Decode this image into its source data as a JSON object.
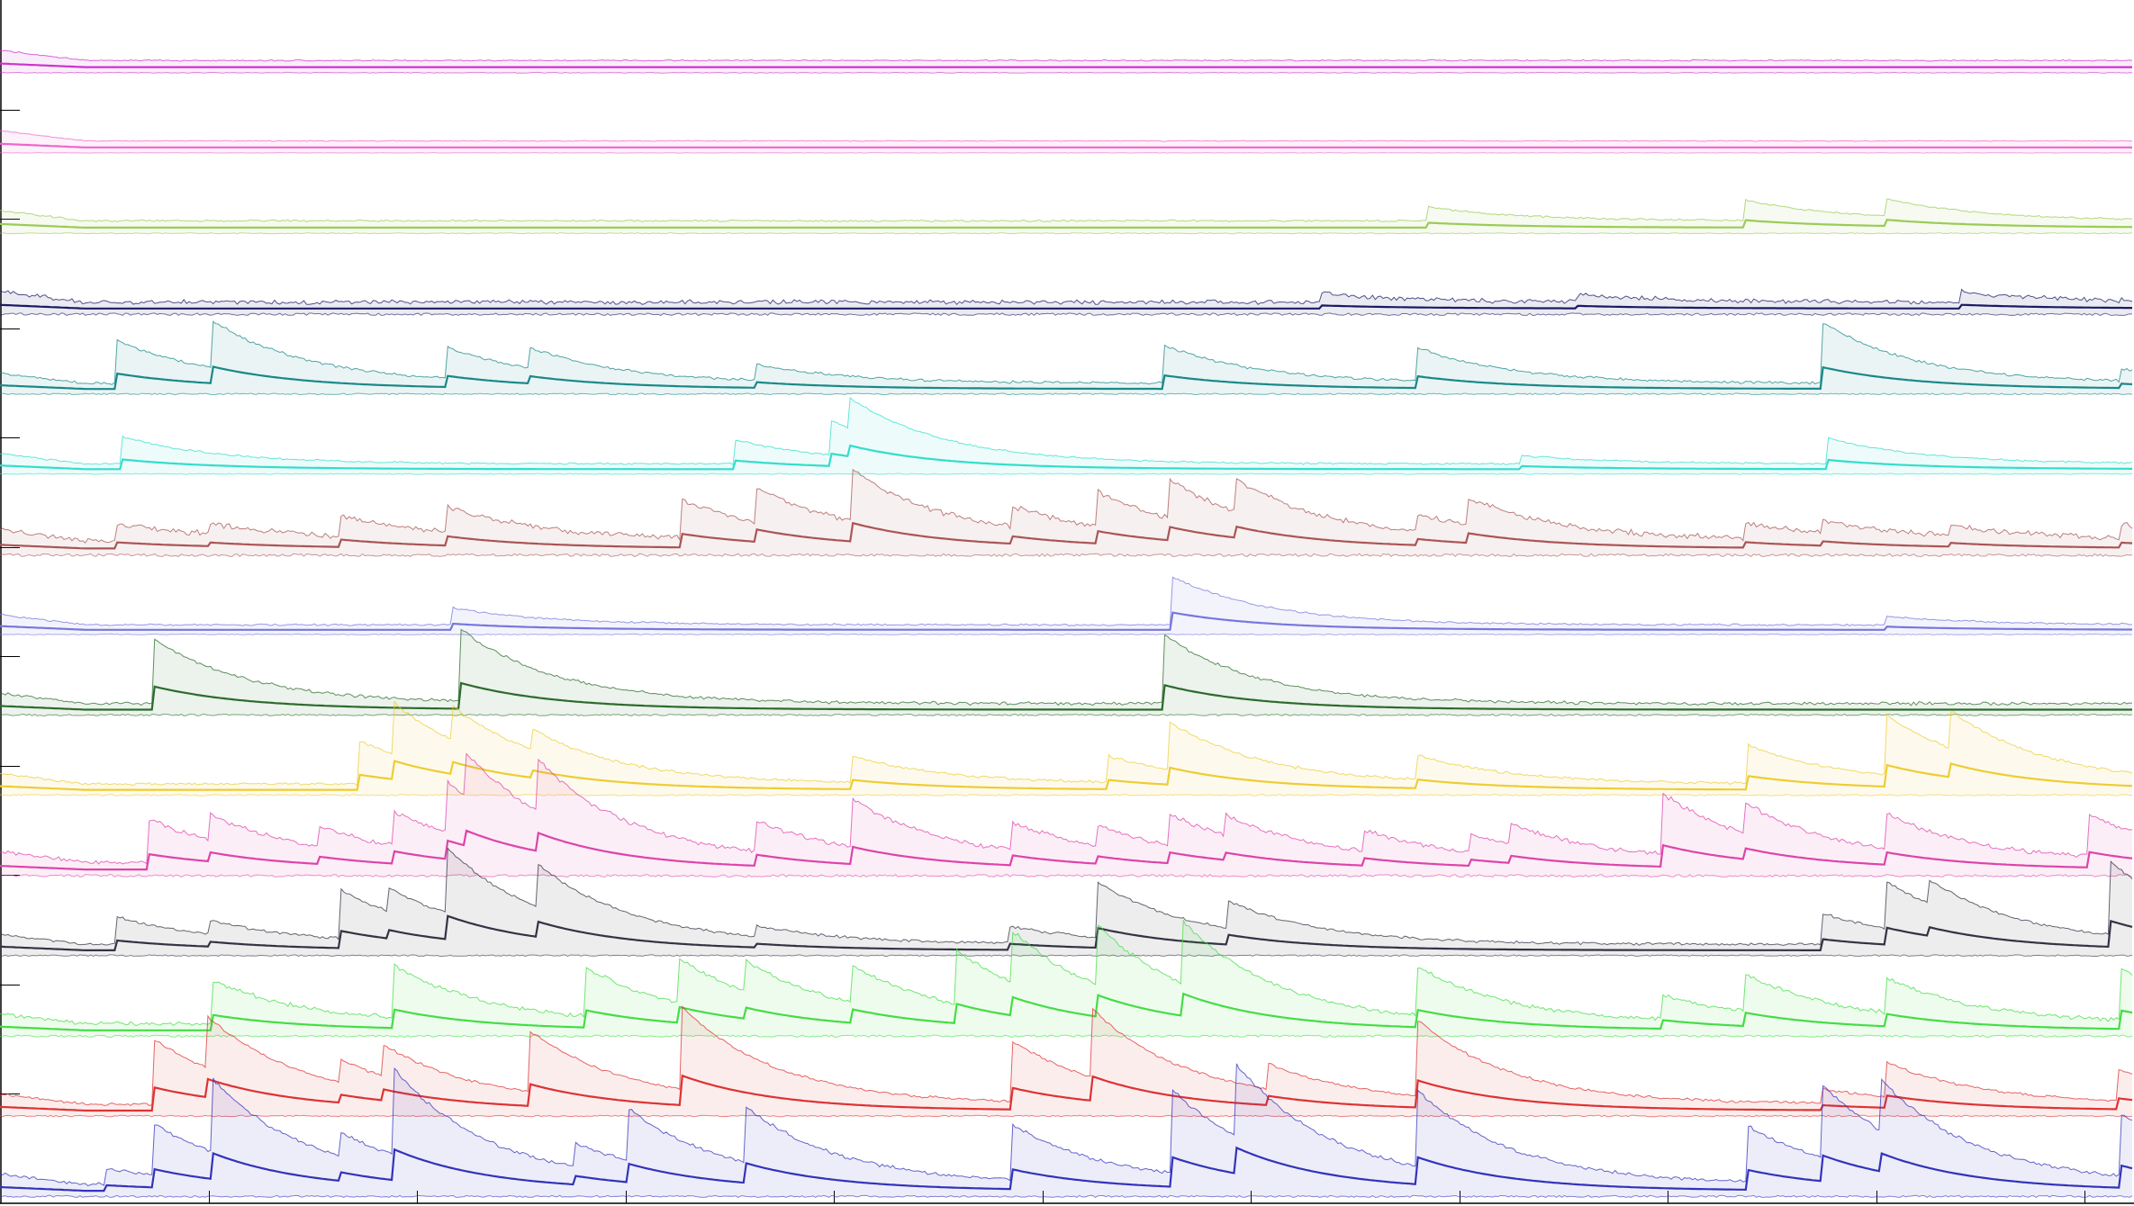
{
  "chart_data": {
    "type": "area",
    "title": "",
    "xlabel": "",
    "ylabel": "",
    "grid": false,
    "legend": "none",
    "x_ticks_count": 10,
    "y_ticks_count": 10,
    "x_range": [
      0,
      1000
    ],
    "series": [
      {
        "color": "#cc33cc",
        "baseline": 0.98,
        "noise": 0.15,
        "bursts": []
      },
      {
        "color": "#ee66cc",
        "baseline": 0.96,
        "noise": 0.1,
        "bursts": []
      },
      {
        "color": "#99cc55",
        "baseline": 0.97,
        "noise": 0.2,
        "bursts": [
          [
            670,
            0.8
          ],
          [
            818,
            1.2
          ],
          [
            885,
            1.0
          ]
        ]
      },
      {
        "color": "#1a1a66",
        "baseline": 0.6,
        "noise": 0.5,
        "bursts": [
          [
            620,
            0.5
          ],
          [
            740,
            0.4
          ],
          [
            920,
            0.6
          ]
        ]
      },
      {
        "color": "#1a8888",
        "baseline": 0.5,
        "noise": 0.3,
        "bursts": [
          [
            55,
            2.5
          ],
          [
            100,
            2.7
          ],
          [
            210,
            1.8
          ],
          [
            248,
            1.2
          ],
          [
            355,
            0.9
          ],
          [
            546,
            2.2
          ],
          [
            665,
            1.9
          ],
          [
            855,
            3.5
          ],
          [
            995,
            0.7
          ]
        ]
      },
      {
        "color": "#33ddcc",
        "baseline": 0.5,
        "noise": 0.2,
        "bursts": [
          [
            57,
            1.6
          ],
          [
            345,
            1.4
          ],
          [
            390,
            2.0
          ],
          [
            398,
            1.8
          ],
          [
            713,
            0.5
          ],
          [
            857,
            1.5
          ]
        ]
      },
      {
        "color": "#aa5555",
        "baseline": 1.0,
        "noise": 0.6,
        "bursts": [
          [
            55,
            1.0
          ],
          [
            98,
            0.6
          ],
          [
            160,
            1.2
          ],
          [
            210,
            1.5
          ],
          [
            320,
            2.2
          ],
          [
            355,
            2.0
          ],
          [
            400,
            3.0
          ],
          [
            475,
            1.2
          ],
          [
            515,
            2.0
          ],
          [
            548,
            2.2
          ],
          [
            580,
            1.8
          ],
          [
            665,
            1.0
          ],
          [
            688,
            1.6
          ],
          [
            818,
            0.9
          ],
          [
            855,
            0.7
          ],
          [
            915,
            0.6
          ],
          [
            995,
            0.8
          ]
        ]
      },
      {
        "color": "#7777dd",
        "baseline": 0.4,
        "noise": 0.2,
        "bursts": [
          [
            212,
            1.0
          ],
          [
            550,
            2.8
          ],
          [
            885,
            0.5
          ]
        ]
      },
      {
        "color": "#2d6b2d",
        "baseline": 0.6,
        "noise": 0.35,
        "bursts": [
          [
            72,
            3.8
          ],
          [
            216,
            4.2
          ],
          [
            546,
            4.0
          ]
        ]
      },
      {
        "color": "#eecc33",
        "baseline": 0.6,
        "noise": 0.3,
        "bursts": [
          [
            168,
            2.5
          ],
          [
            185,
            3.0
          ],
          [
            212,
            2.0
          ],
          [
            250,
            1.2
          ],
          [
            400,
            1.5
          ],
          [
            520,
            1.5
          ],
          [
            548,
            2.8
          ],
          [
            665,
            1.4
          ],
          [
            820,
            2.2
          ],
          [
            885,
            3.5
          ],
          [
            915,
            2.2
          ]
        ]
      },
      {
        "color": "#dd44aa",
        "baseline": 0.9,
        "noise": 0.5,
        "bursts": [
          [
            70,
            2.5
          ],
          [
            98,
            1.5
          ],
          [
            150,
            1.2
          ],
          [
            185,
            2.0
          ],
          [
            210,
            3.0
          ],
          [
            218,
            2.5
          ],
          [
            252,
            3.0
          ],
          [
            355,
            1.8
          ],
          [
            400,
            2.8
          ],
          [
            475,
            1.6
          ],
          [
            515,
            1.2
          ],
          [
            548,
            1.8
          ],
          [
            575,
            1.2
          ],
          [
            640,
            1.2
          ],
          [
            690,
            1.0
          ],
          [
            708,
            1.2
          ],
          [
            780,
            3.5
          ],
          [
            818,
            1.8
          ],
          [
            885,
            2.0
          ],
          [
            980,
            2.5
          ]
        ]
      },
      {
        "color": "#333344",
        "baseline": 0.6,
        "noise": 0.3,
        "bursts": [
          [
            55,
            1.6
          ],
          [
            98,
            0.8
          ],
          [
            160,
            2.8
          ],
          [
            182,
            1.4
          ],
          [
            210,
            3.8
          ],
          [
            252,
            2.5
          ],
          [
            355,
            0.6
          ],
          [
            473,
            1.0
          ],
          [
            515,
            3.2
          ],
          [
            576,
            1.6
          ],
          [
            855,
            1.8
          ],
          [
            884,
            2.8
          ],
          [
            905,
            1.4
          ],
          [
            990,
            4.2
          ]
        ]
      },
      {
        "color": "#44dd44",
        "baseline": 0.7,
        "noise": 0.45,
        "bursts": [
          [
            100,
            2.5
          ],
          [
            185,
            3.0
          ],
          [
            275,
            2.8
          ],
          [
            318,
            2.6
          ],
          [
            350,
            1.8
          ],
          [
            400,
            2.2
          ],
          [
            448,
            3.2
          ],
          [
            475,
            3.0
          ],
          [
            515,
            3.5
          ],
          [
            555,
            3.6
          ],
          [
            665,
            2.8
          ],
          [
            780,
            1.4
          ],
          [
            818,
            2.2
          ],
          [
            885,
            2.0
          ],
          [
            995,
            3.0
          ]
        ]
      },
      {
        "color": "#dd3333",
        "baseline": 0.7,
        "noise": 0.3,
        "bursts": [
          [
            72,
            3.8
          ],
          [
            97,
            3.0
          ],
          [
            160,
            1.3
          ],
          [
            180,
            1.8
          ],
          [
            248,
            3.6
          ],
          [
            320,
            4.8
          ],
          [
            475,
            3.5
          ],
          [
            512,
            4.0
          ],
          [
            595,
            1.5
          ],
          [
            665,
            4.4
          ],
          [
            855,
            0.8
          ],
          [
            885,
            2.0
          ],
          [
            993,
            1.8
          ]
        ]
      },
      {
        "color": "#3333bb",
        "baseline": 0.7,
        "noise": 0.4,
        "bursts": [
          [
            50,
            0.9
          ],
          [
            72,
            3.0
          ],
          [
            100,
            4.2
          ],
          [
            160,
            1.4
          ],
          [
            185,
            5.0
          ],
          [
            270,
            1.4
          ],
          [
            295,
            3.0
          ],
          [
            350,
            3.2
          ],
          [
            475,
            3.2
          ],
          [
            550,
            4.8
          ],
          [
            580,
            4.2
          ],
          [
            665,
            4.4
          ],
          [
            820,
            3.2
          ],
          [
            855,
            4.2
          ],
          [
            882,
            3.0
          ],
          [
            995,
            3.6
          ]
        ]
      }
    ]
  }
}
